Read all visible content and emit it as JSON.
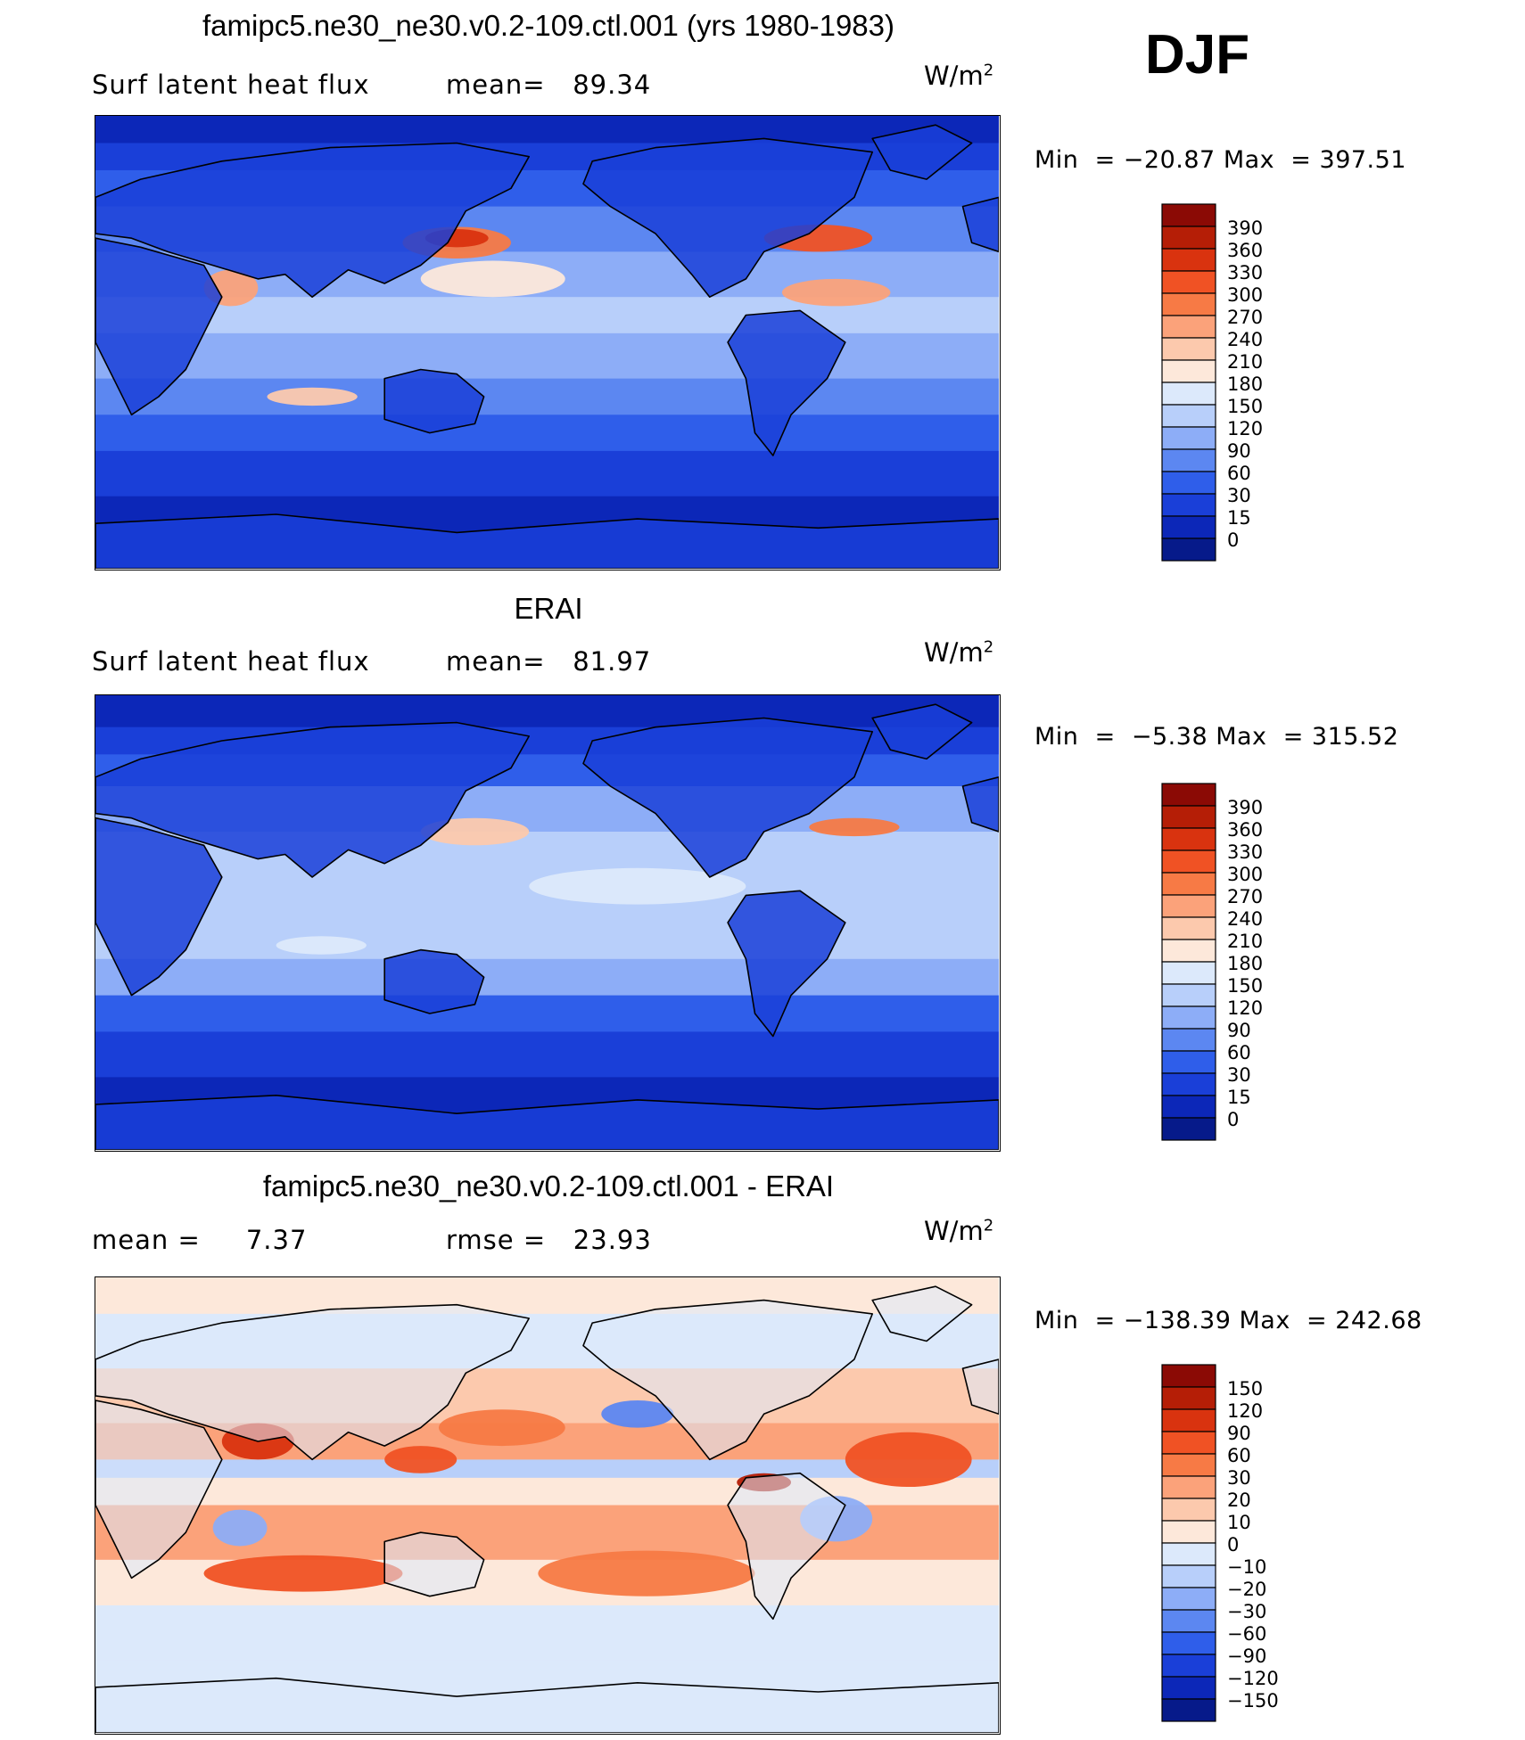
{
  "djf_label": "DJF",
  "chart_data": [
    {
      "type": "heatmap",
      "title": "famipc5.ne30_ne30.v0.2-109.ctl.001 (yrs 1980-1983)",
      "left_label": "Surf latent heat flux",
      "stat_label": "mean=",
      "stat_value": "89.34",
      "units": "W/m",
      "units_exp": "2",
      "min_label": "Min  =",
      "min_value": "−20.87",
      "max_label": "Max  =",
      "max_value": "397.51",
      "colorbar": {
        "levels": [
          "390",
          "360",
          "330",
          "300",
          "270",
          "240",
          "210",
          "180",
          "150",
          "120",
          "90",
          "60",
          "30",
          "15",
          "0"
        ],
        "colors": [
          "#8b0a05",
          "#b51e06",
          "#d9330f",
          "#f05224",
          "#f77a45",
          "#fba27a",
          "#fcc9ad",
          "#fde8da",
          "#dce9fb",
          "#b8cffa",
          "#8dadf7",
          "#5c87f1",
          "#2f5eea",
          "#1a3fd8",
          "#0c27b8",
          "#061a8a"
        ]
      }
    },
    {
      "type": "heatmap",
      "title": "ERAI",
      "left_label": "Surf latent heat flux",
      "stat_label": "mean=",
      "stat_value": "81.97",
      "units": "W/m",
      "units_exp": "2",
      "min_label": "Min  =",
      "min_value": " −5.38",
      "max_label": "Max  =",
      "max_value": "315.52",
      "colorbar": {
        "levels": [
          "390",
          "360",
          "330",
          "300",
          "270",
          "240",
          "210",
          "180",
          "150",
          "120",
          "90",
          "60",
          "30",
          "15",
          "0"
        ],
        "colors": [
          "#8b0a05",
          "#b51e06",
          "#d9330f",
          "#f05224",
          "#f77a45",
          "#fba27a",
          "#fcc9ad",
          "#fde8da",
          "#dce9fb",
          "#b8cffa",
          "#8dadf7",
          "#5c87f1",
          "#2f5eea",
          "#1a3fd8",
          "#0c27b8",
          "#061a8a"
        ]
      }
    },
    {
      "type": "heatmap",
      "title": "famipc5.ne30_ne30.v0.2-109.ctl.001 - ERAI",
      "left_label": "mean  =",
      "left_value": "7.37",
      "stat_label": "rmse  =",
      "stat_value": "23.93",
      "units": "W/m",
      "units_exp": "2",
      "min_label": "Min  =",
      "min_value": "−138.39",
      "max_label": "Max  =",
      "max_value": "242.68",
      "colorbar": {
        "levels": [
          "150",
          "120",
          "90",
          "60",
          "30",
          "20",
          "10",
          "0",
          "−10",
          "−20",
          "−30",
          "−60",
          "−90",
          "−120",
          "−150"
        ],
        "colors": [
          "#8b0a05",
          "#b51e06",
          "#d9330f",
          "#f05224",
          "#f77a45",
          "#fba27a",
          "#fcc9ad",
          "#fde8da",
          "#dce9fb",
          "#b8cffa",
          "#8dadf7",
          "#5c87f1",
          "#2f5eea",
          "#1a3fd8",
          "#0c27b8",
          "#061a8a"
        ]
      }
    }
  ]
}
